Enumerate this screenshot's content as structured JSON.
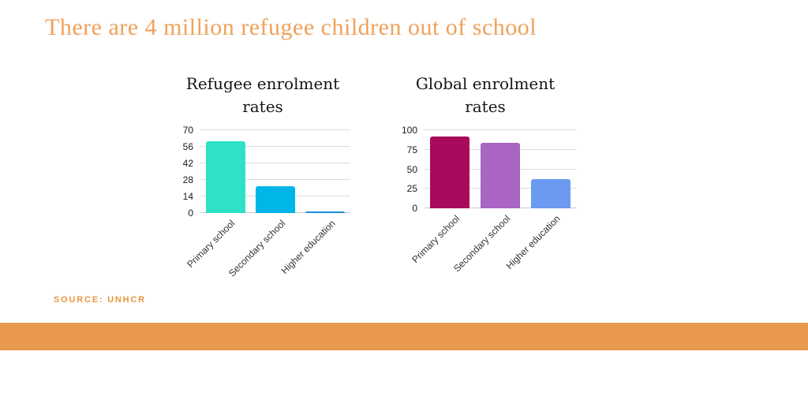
{
  "page": {
    "title": "There are 4 million refugee children out of school",
    "source_label": "SOURCE: UNHCR",
    "accent_color": "#e8994e",
    "title_color": "#f0a159"
  },
  "chart_data": [
    {
      "type": "bar",
      "title": "Refugee enrolment rates",
      "categories": [
        "Primary school",
        "Secondary school",
        "Higher education"
      ],
      "values": [
        61,
        23,
        1
      ],
      "bar_colors": [
        "#2ee2c9",
        "#00b6e8",
        "#1e90dc"
      ],
      "yticks": [
        0,
        14,
        28,
        42,
        56,
        70
      ],
      "ylim": [
        0,
        70
      ],
      "xlabel": "",
      "ylabel": "",
      "grid": true,
      "legend": false
    },
    {
      "type": "bar",
      "title": "Global enrolment rates",
      "categories": [
        "Primary school",
        "Secondary school",
        "Higher education"
      ],
      "values": [
        92,
        84,
        37
      ],
      "bar_colors": [
        "#a80a5c",
        "#a964c4",
        "#6b9af0"
      ],
      "yticks": [
        0,
        25,
        50,
        75,
        100
      ],
      "ylim": [
        0,
        100
      ],
      "xlabel": "",
      "ylabel": "",
      "grid": true,
      "legend": false
    }
  ]
}
